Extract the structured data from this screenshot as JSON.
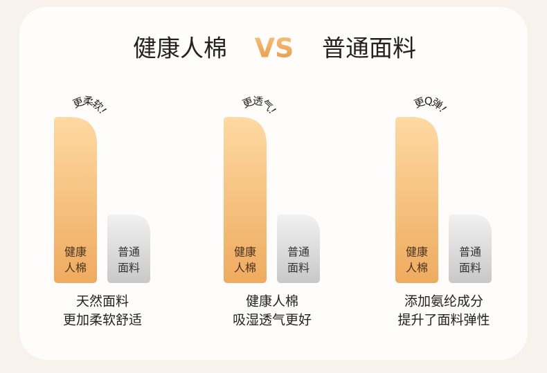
{
  "header": {
    "left": "健康人棉",
    "vs": "VS",
    "right": "普通面料"
  },
  "groups": [
    {
      "callout": "更柔软！",
      "tall": [
        "健康",
        "人棉"
      ],
      "short": [
        "普通",
        "面料"
      ],
      "caption": [
        "天然面料",
        "更加柔软舒适"
      ]
    },
    {
      "callout": "更透气！",
      "tall": [
        "健康",
        "人棉"
      ],
      "short": [
        "普通",
        "面料"
      ],
      "caption": [
        "健康人棉",
        "吸湿透气更好"
      ]
    },
    {
      "callout": "更Q弹！",
      "tall": [
        "健康",
        "人棉"
      ],
      "short": [
        "普通",
        "面料"
      ],
      "caption": [
        "添加氨纶成分",
        "提升了面料弹性"
      ]
    }
  ]
}
